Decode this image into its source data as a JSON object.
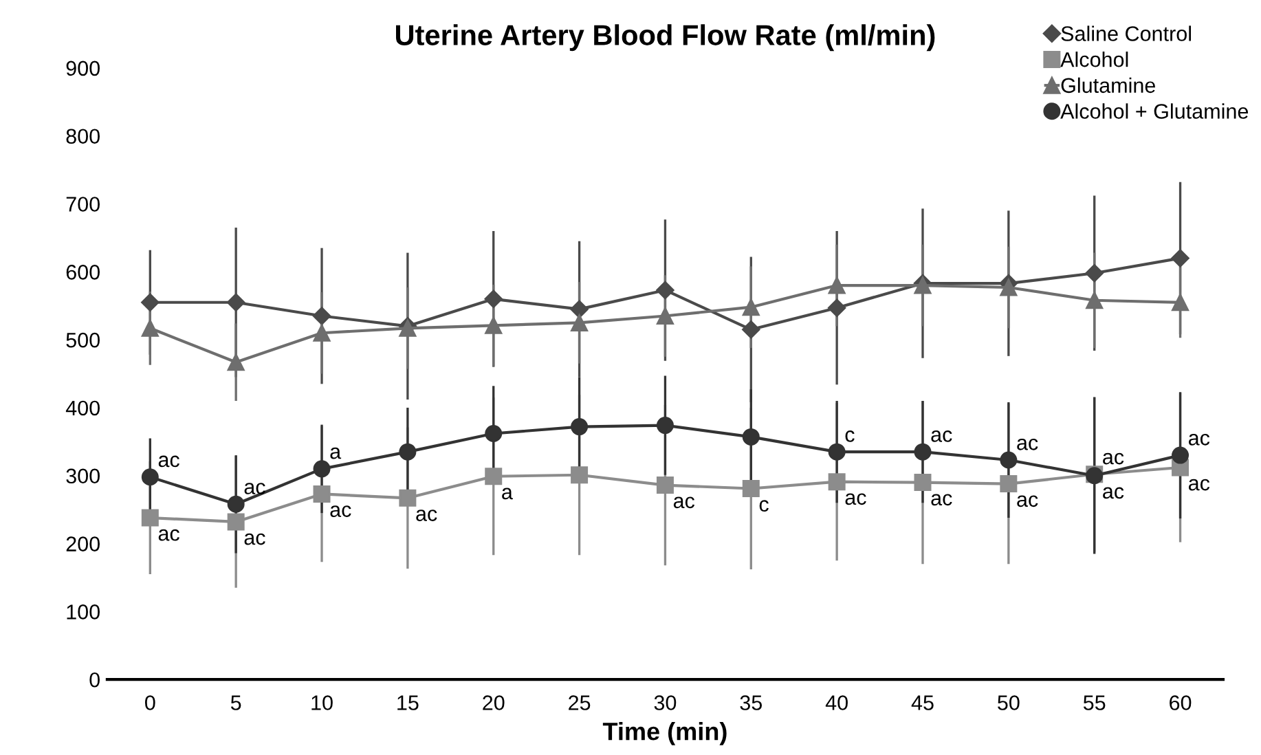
{
  "chart_data": {
    "type": "line",
    "title": "Uterine Artery Blood Flow Rate (ml/min)",
    "xlabel": "Time (min)",
    "categories": [
      "0",
      "5",
      "10",
      "15",
      "20",
      "25",
      "30",
      "35",
      "40",
      "45",
      "50",
      "55",
      "60"
    ],
    "ylim": [
      0,
      900
    ],
    "yticks": [
      0,
      100,
      200,
      300,
      400,
      500,
      600,
      700,
      800,
      900
    ],
    "grid": false,
    "legend": "top right",
    "series": [
      {
        "name": "Saline Control",
        "color": "#4a4a4a",
        "marker": "diamond",
        "values": [
          555,
          555,
          535,
          520,
          560,
          545,
          573,
          515,
          547,
          583,
          583,
          598,
          620
        ],
        "errors": [
          77,
          110,
          100,
          108,
          100,
          100,
          104,
          107,
          113,
          110,
          107,
          114,
          112
        ]
      },
      {
        "name": "Alcohol",
        "color": "#8c8c8c",
        "marker": "square",
        "values": [
          238,
          232,
          273,
          267,
          299,
          301,
          286,
          281,
          291,
          290,
          288,
          302,
          312
        ],
        "errors": [
          83,
          97,
          100,
          104,
          116,
          118,
          118,
          119,
          116,
          120,
          118,
          114,
          110
        ]
      },
      {
        "name": "Glutamine",
        "color": "#6e6e6e",
        "marker": "triangle",
        "values": [
          517,
          467,
          510,
          517,
          521,
          525,
          535,
          548,
          580,
          580,
          577,
          558,
          555
        ],
        "errors": [
          54,
          57,
          60,
          60,
          60,
          60,
          60,
          60,
          60,
          60,
          60,
          70,
          52
        ]
      },
      {
        "name": "Alcohol + Glutamine",
        "color": "#333333",
        "marker": "circle",
        "values": [
          298,
          258,
          310,
          335,
          362,
          372,
          374,
          357,
          335,
          335,
          323,
          300,
          330
        ],
        "errors": [
          57,
          72,
          65,
          65,
          70,
          73,
          73,
          70,
          75,
          75,
          85,
          115,
          93
        ]
      }
    ],
    "annotations": [
      {
        "text": "ac",
        "x": "0",
        "y": 298
      },
      {
        "text": "ac",
        "x": "5",
        "y": 258
      },
      {
        "text": "a",
        "x": "10",
        "y": 310
      },
      {
        "text": "c",
        "x": "40",
        "y": 335
      },
      {
        "text": "ac",
        "x": "45",
        "y": 335
      },
      {
        "text": "ac",
        "x": "50",
        "y": 323
      },
      {
        "text": "ac",
        "x": "55",
        "y": 300
      },
      {
        "text": "ac",
        "x": "60",
        "y": 330
      },
      {
        "text": "ac",
        "x": "0",
        "y": 238
      },
      {
        "text": "ac",
        "x": "5",
        "y": 232
      },
      {
        "text": "ac",
        "x": "10",
        "y": 273
      },
      {
        "text": "ac",
        "x": "15",
        "y": 267
      },
      {
        "text": "a",
        "x": "20",
        "y": 299
      },
      {
        "text": "ac",
        "x": "30",
        "y": 286
      },
      {
        "text": "c",
        "x": "35",
        "y": 281
      },
      {
        "text": "ac",
        "x": "40",
        "y": 291
      },
      {
        "text": "ac",
        "x": "45",
        "y": 290
      },
      {
        "text": "ac",
        "x": "50",
        "y": 288
      },
      {
        "text": "ac",
        "x": "55",
        "y": 302
      },
      {
        "text": "ac",
        "x": "60",
        "y": 312
      }
    ]
  }
}
